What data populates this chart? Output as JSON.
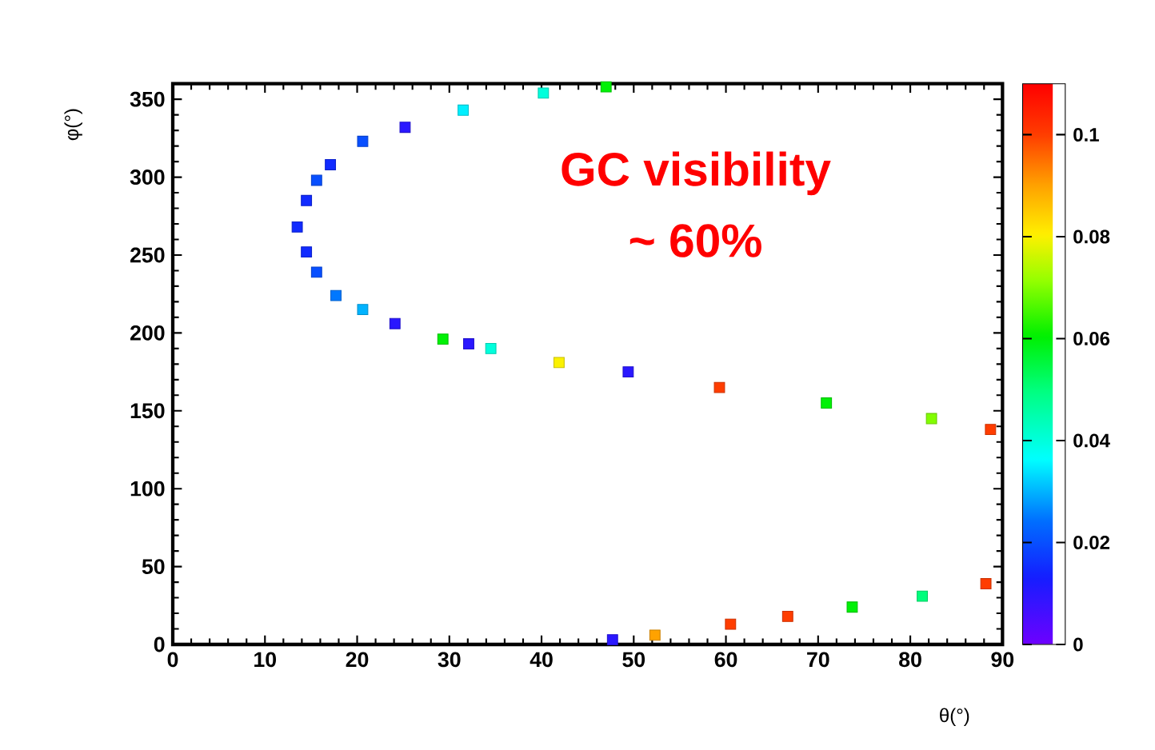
{
  "chart_data": {
    "type": "scatter",
    "xlabel": "θ(°)",
    "ylabel": "φ(°)",
    "annotations": [
      "GC visibility",
      "~ 60%"
    ],
    "xlim": [
      0,
      90
    ],
    "ylim": [
      0,
      360
    ],
    "xticks": [
      0,
      10,
      20,
      30,
      40,
      50,
      60,
      70,
      80,
      90
    ],
    "yticks": [
      0,
      50,
      100,
      150,
      200,
      250,
      300,
      350
    ],
    "clim": [
      0,
      0.11
    ],
    "cticks": [
      0,
      0.02,
      0.04,
      0.06,
      0.08,
      0.1
    ],
    "marker": "square",
    "x": [
      47,
      40.2,
      31.5,
      25.2,
      20.6,
      17.1,
      15.6,
      14.5,
      13.5,
      14.5,
      15.6,
      17.7,
      20.6,
      24.1,
      29.3,
      32.1,
      34.5,
      41.9,
      49.4,
      59.3,
      70.9,
      82.3,
      88.7,
      47.7,
      52.3,
      60.5,
      66.7,
      73.7,
      81.3,
      88.2
    ],
    "values": [
      358,
      354,
      343,
      332,
      323,
      308,
      298,
      285,
      268,
      252,
      239,
      224,
      215,
      206,
      196,
      193,
      190,
      181,
      175,
      165,
      155,
      145,
      138,
      3,
      6,
      13,
      18,
      24,
      31,
      39
    ],
    "cvalues": [
      0.06,
      0.04,
      0.035,
      0.01,
      0.02,
      0.015,
      0.02,
      0.015,
      0.015,
      0.015,
      0.02,
      0.025,
      0.03,
      0.01,
      0.06,
      0.01,
      0.04,
      0.08,
      0.01,
      0.1,
      0.06,
      0.07,
      0.1,
      0.01,
      0.09,
      0.1,
      0.1,
      0.06,
      0.05,
      0.1
    ]
  }
}
